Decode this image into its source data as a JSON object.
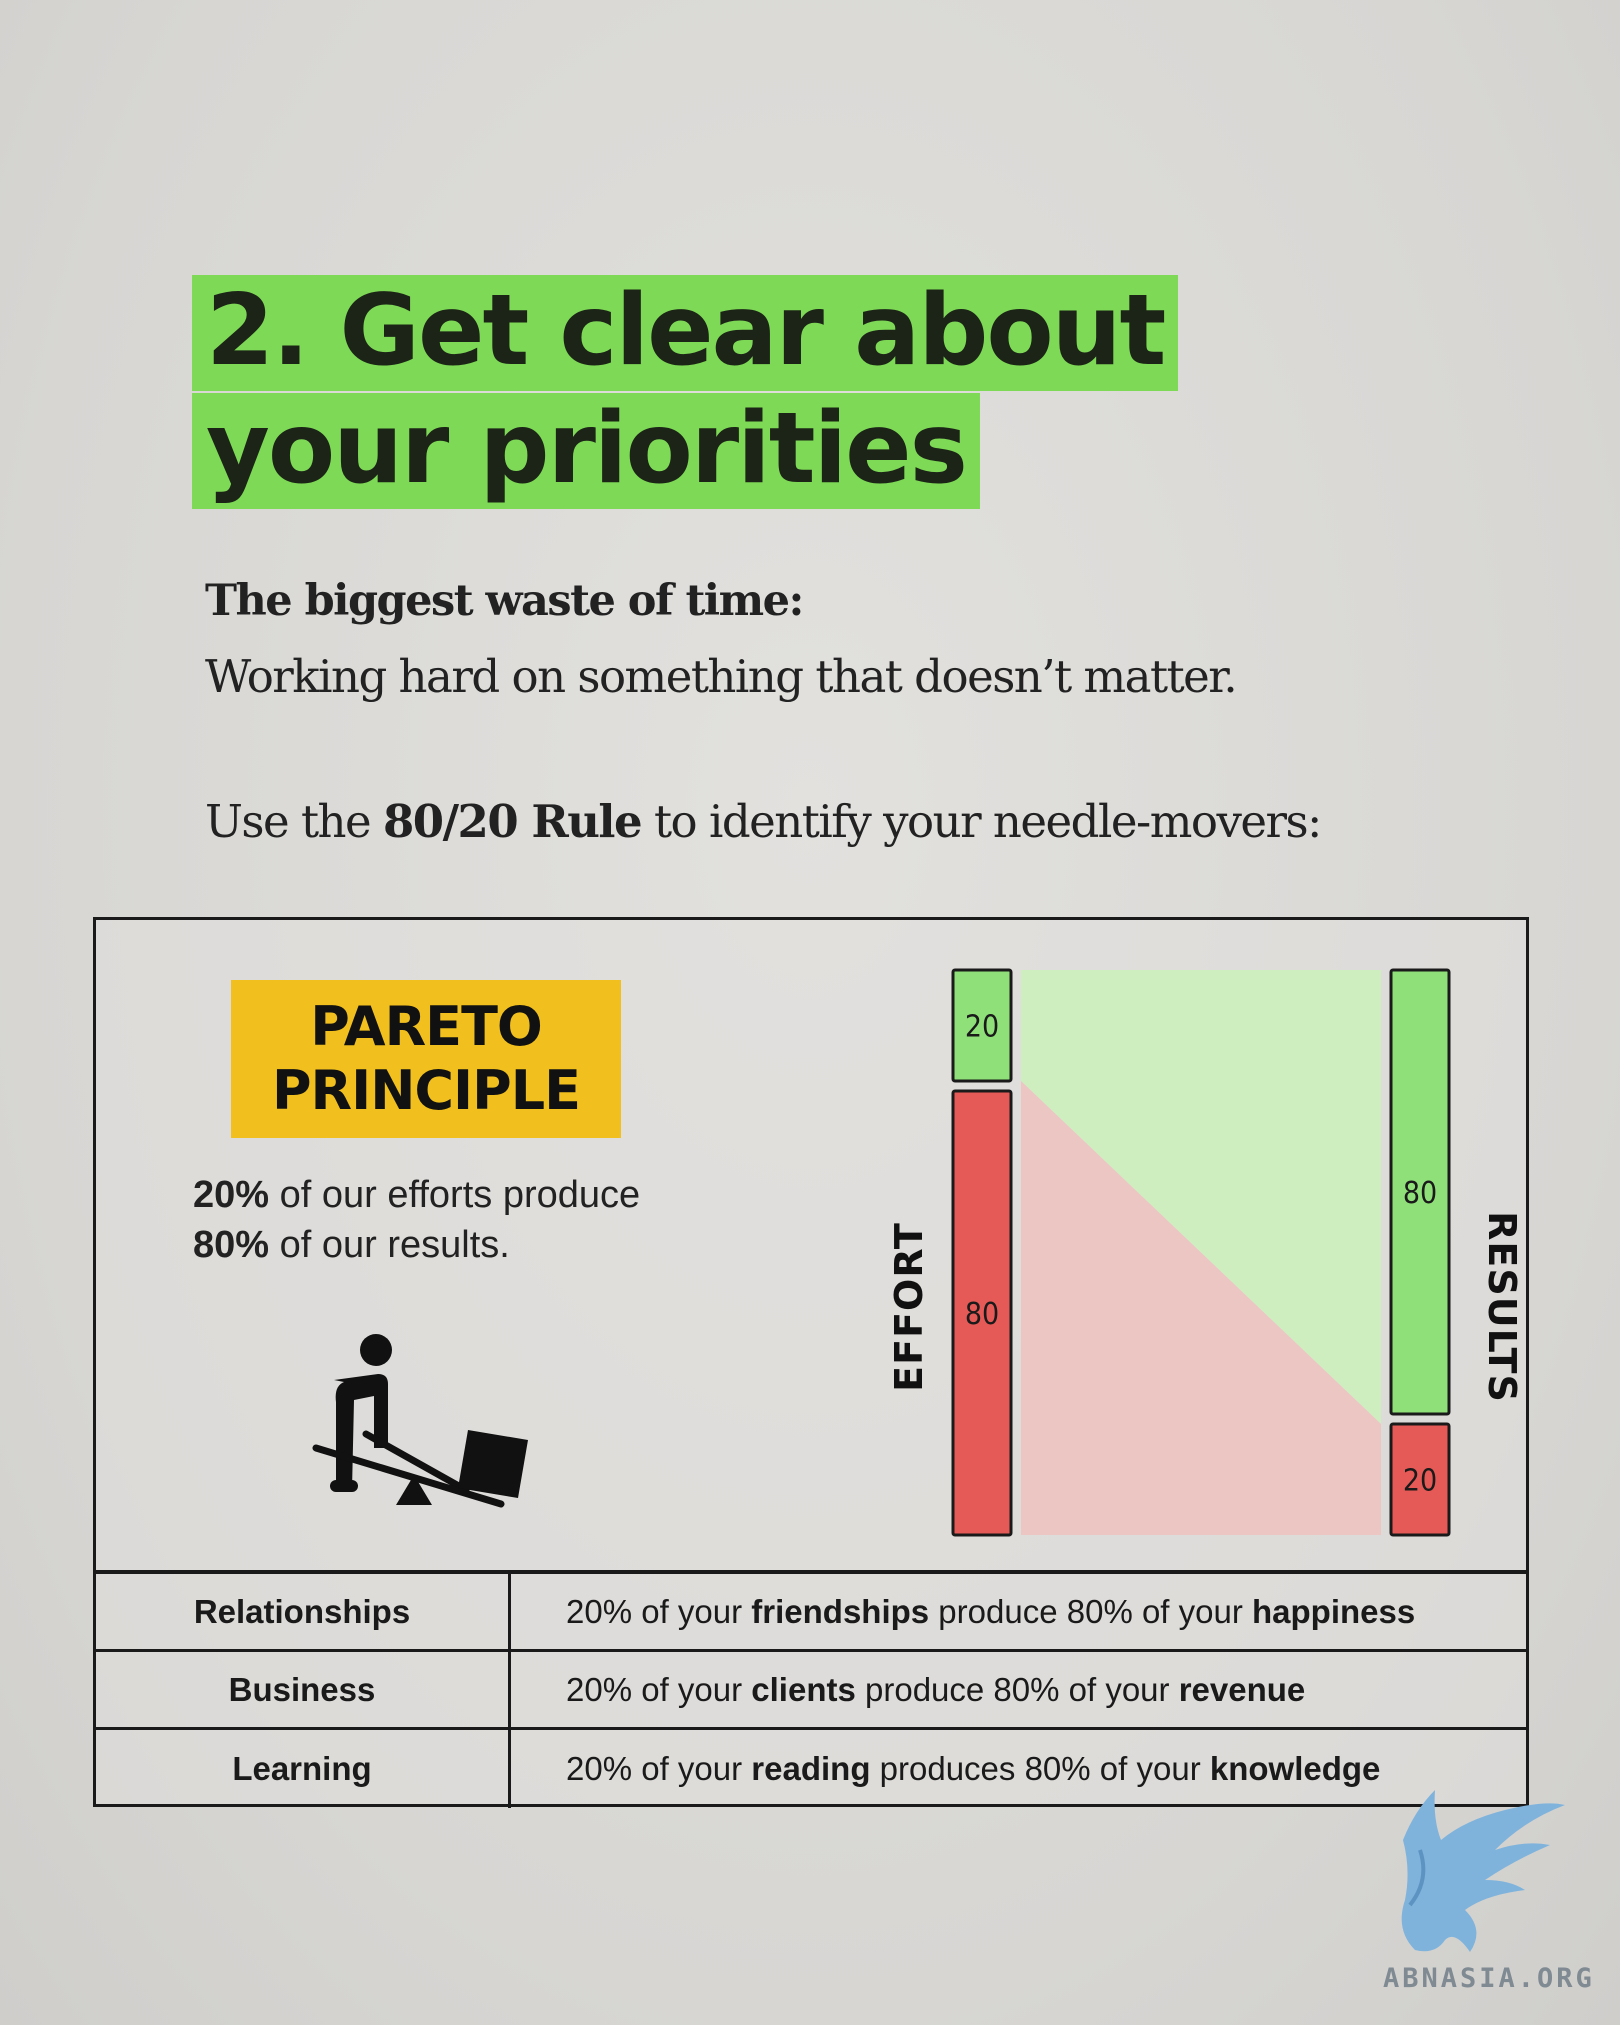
{
  "title": {
    "line1": "2. Get clear about",
    "line2": "your priorities"
  },
  "subhead": "The biggest waste of time:",
  "subtext": "Working hard on something that doesn’t matter.",
  "rule_line": {
    "prefix": "Use the ",
    "bold": "80/20 Rule",
    "suffix": " to identify your needle-movers:"
  },
  "badge": {
    "line1": "PARETO",
    "line2": "PRINCIPLE",
    "color": "#f2c01e"
  },
  "pareto_text": {
    "l1_bold": "20%",
    "l1_rest": " of our efforts produce",
    "l2_bold": "80%",
    "l2_rest": " of our results."
  },
  "figure_icon": "person-lever-box-icon",
  "chart_data": {
    "type": "bar",
    "effort_label": "EFFORT",
    "results_label": "RESULTS",
    "effort": [
      {
        "label": "20",
        "value": 20,
        "color": "#90e07a"
      },
      {
        "label": "80",
        "value": 80,
        "color": "#e55a57"
      }
    ],
    "results": [
      {
        "label": "80",
        "value": 80,
        "color": "#90e07a"
      },
      {
        "label": "20",
        "value": 20,
        "color": "#e55a57"
      }
    ]
  },
  "table": [
    {
      "area": "Relationships",
      "pre": "20% of your ",
      "b1": "friendships",
      "mid": " produce 80% of your ",
      "b2": "happiness"
    },
    {
      "area": "Business",
      "pre": "20% of your ",
      "b1": "clients",
      "mid": " produce 80% of your ",
      "b2": "revenue"
    },
    {
      "area": "Learning",
      "pre": "20% of your ",
      "b1": "reading",
      "mid": " produces 80% of your ",
      "b2": "knowledge"
    }
  ],
  "logo": {
    "text": "ABNASIA.ORG",
    "icon": "griffin-logo-icon",
    "color": "#6aa6d4"
  }
}
